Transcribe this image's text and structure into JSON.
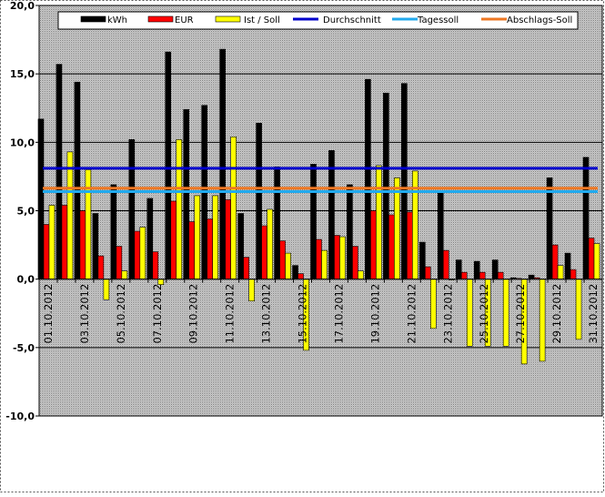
{
  "chart_data": {
    "type": "bar",
    "categories": [
      "01.10.2012",
      "02.10.2012",
      "03.10.2012",
      "04.10.2012",
      "05.10.2012",
      "06.10.2012",
      "07.10.2012",
      "08.10.2012",
      "09.10.2012",
      "10.10.2012",
      "11.10.2012",
      "12.10.2012",
      "13.10.2012",
      "14.10.2012",
      "15.10.2012",
      "16.10.2012",
      "17.10.2012",
      "18.10.2012",
      "19.10.2012",
      "20.10.2012",
      "21.10.2012",
      "22.10.2012",
      "23.10.2012",
      "24.10.2012",
      "25.10.2012",
      "26.10.2012",
      "27.10.2012",
      "28.10.2012",
      "29.10.2012",
      "30.10.2012",
      "31.10.2012"
    ],
    "x_tick_labels": [
      "01.10.2012",
      "03.10.2012",
      "05.10.2012",
      "07.10.2012",
      "09.10.2012",
      "11.10.2012",
      "13.10.2012",
      "15.10.2012",
      "17.10.2012",
      "19.10.2012",
      "21.10.2012",
      "23.10.2012",
      "25.10.2012",
      "27.10.2012",
      "29.10.2012",
      "31.10.2012"
    ],
    "series": [
      {
        "name": "kWh",
        "color": "#000000",
        "values": [
          11.7,
          15.7,
          14.4,
          4.8,
          6.9,
          10.2,
          5.9,
          16.6,
          12.4,
          12.7,
          16.8,
          4.8,
          11.4,
          8.2,
          1.0,
          8.4,
          9.4,
          6.9,
          14.6,
          13.6,
          14.3,
          2.7,
          6.3,
          1.4,
          1.3,
          1.4,
          0.1,
          0.3,
          7.4,
          1.9,
          8.9
        ]
      },
      {
        "name": "EUR",
        "color": "#ff0000",
        "values": [
          4.0,
          5.4,
          5.0,
          1.7,
          2.4,
          3.5,
          2.0,
          5.7,
          4.2,
          4.4,
          5.8,
          1.6,
          3.9,
          2.8,
          0.4,
          2.9,
          3.2,
          2.4,
          5.0,
          4.7,
          4.9,
          0.9,
          2.1,
          0.5,
          0.5,
          0.5,
          0.05,
          0.1,
          2.5,
          0.7,
          3.0
        ]
      },
      {
        "name": "Ist / Soll",
        "color": "#ffff00",
        "values": [
          5.4,
          9.3,
          8.0,
          -1.5,
          0.6,
          3.8,
          -0.4,
          10.2,
          6.1,
          6.1,
          10.4,
          -1.6,
          5.1,
          1.9,
          -5.2,
          2.1,
          3.1,
          0.6,
          8.3,
          7.4,
          7.9,
          -3.6,
          0.0,
          -4.9,
          -4.9,
          -4.9,
          -6.2,
          -6.0,
          1.0,
          -4.4,
          2.6
        ]
      }
    ],
    "lines": [
      {
        "name": "Durchschnitt",
        "color": "#0000cc",
        "value": 8.1
      },
      {
        "name": "Tagessoll",
        "color": "#22aaee",
        "value": 6.4
      },
      {
        "name": "Abschlags-Soll",
        "color": "#ee7722",
        "value": 6.65
      }
    ],
    "y_tick_labels": [
      "20,0",
      "15,0",
      "10,0",
      "5,0",
      "0,0",
      "-5,0",
      "-10,0"
    ],
    "ylim": [
      -10,
      20
    ],
    "title": "",
    "xlabel": "",
    "ylabel": "",
    "grid": true,
    "legend_position": "top"
  }
}
